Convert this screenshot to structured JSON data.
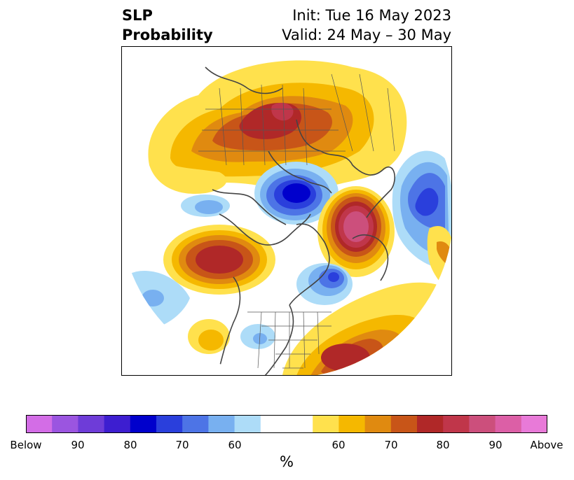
{
  "header": {
    "title_line1": "SLP",
    "title_line2": "Probability",
    "init_text": "Init: Tue 16 May 2023",
    "valid_text": "Valid: 24 May – 30 May"
  },
  "colorbar": {
    "label": "%",
    "colors": [
      "#d36de6",
      "#9b55e0",
      "#6e3cd8",
      "#3d1ed0",
      "#0000cc",
      "#2a3fdc",
      "#4d74e6",
      "#78b0f0",
      "#addcf8",
      "#ffffff",
      "#ffffff",
      "#ffe14d",
      "#f5b800",
      "#e08a10",
      "#c85518",
      "#b02828",
      "#c0364a",
      "#cc4f7c",
      "#dc5fa6",
      "#e87ad8"
    ],
    "tick_labels": [
      "Below",
      "90",
      "80",
      "70",
      "60",
      "60",
      "70",
      "80",
      "90",
      "Above"
    ]
  },
  "map": {
    "projection": "north-polar-stereographic",
    "features": [
      {
        "name": "eastern-europe-russia-high",
        "category": "Above",
        "peak": "90+"
      },
      {
        "name": "barents-kara-low",
        "category": "Below",
        "peak": "80"
      },
      {
        "name": "bering-strait-high",
        "category": "Above",
        "peak": "90+"
      },
      {
        "name": "northeast-pacific-high",
        "category": "Above",
        "peak": "80"
      },
      {
        "name": "north-atlantic-high",
        "category": "Above",
        "peak": "80"
      },
      {
        "name": "hudson-bay-low",
        "category": "Below",
        "peak": "70"
      },
      {
        "name": "east-asia-low",
        "category": "Below",
        "peak": "70"
      }
    ]
  }
}
